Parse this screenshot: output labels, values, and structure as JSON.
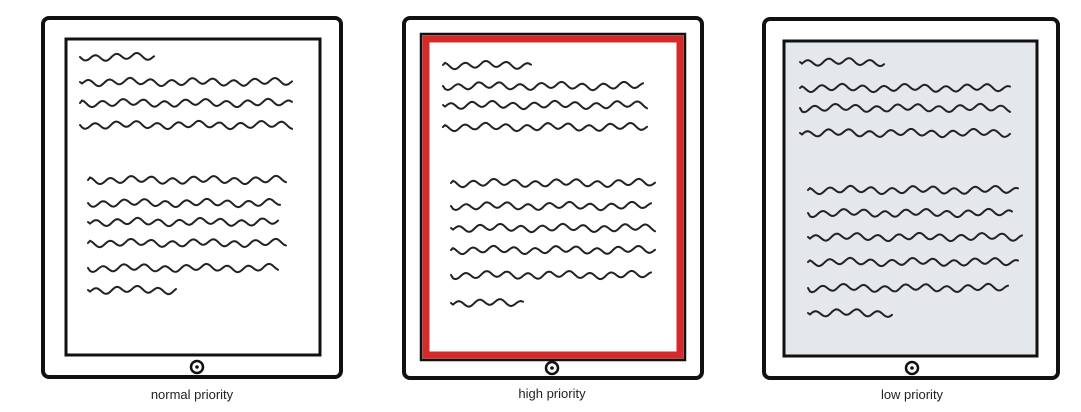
{
  "panels": [
    {
      "caption": "normal priority"
    },
    {
      "caption": "high priority"
    },
    {
      "caption": "low priority"
    }
  ]
}
